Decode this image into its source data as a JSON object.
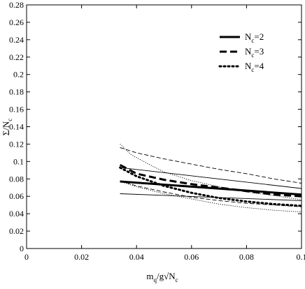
{
  "chart_data": {
    "type": "line",
    "title": "",
    "xlabel_parts": {
      "main": "m",
      "sub1": "q",
      "mid": "/g√N",
      "sub2": "c"
    },
    "ylabel_parts": {
      "main": "Σ/N",
      "sub": "c"
    },
    "xlim": [
      0,
      0.1
    ],
    "ylim": [
      0,
      0.28
    ],
    "xticks": [
      0,
      0.02,
      0.04,
      0.06,
      0.08,
      0.1
    ],
    "xtick_labels": [
      "0",
      "0.02",
      "0.04",
      "0.06",
      "0.08",
      "0.1"
    ],
    "yticks": [
      0,
      0.02,
      0.04,
      0.06,
      0.08,
      0.1,
      0.12,
      0.14,
      0.16,
      0.18,
      0.2,
      0.22,
      0.24,
      0.26,
      0.28
    ],
    "ytick_labels": [
      "0",
      "0.02",
      "0.04",
      "0.06",
      "0.08",
      "0.1",
      "0.12",
      "0.14",
      "0.16",
      "0.18",
      "0.2",
      "0.22",
      "0.24",
      "0.26",
      "0.28"
    ],
    "grid": false,
    "legend_position": "top-right",
    "legend": [
      {
        "main": "N",
        "sub": "c",
        "suffix": "=2",
        "style": "solid"
      },
      {
        "main": "N",
        "sub": "c",
        "suffix": "=3",
        "style": "dashed"
      },
      {
        "main": "N",
        "sub": "c",
        "suffix": "=4",
        "style": "dotted"
      }
    ],
    "series": [
      {
        "style": "solid",
        "weight": "thick",
        "x": [
          0.034,
          0.1
        ],
        "y": [
          0.077,
          0.062
        ]
      },
      {
        "style": "solid",
        "weight": "thin",
        "x": [
          0.034,
          0.1
        ],
        "y": [
          0.093,
          0.069
        ]
      },
      {
        "style": "solid",
        "weight": "thin",
        "x": [
          0.034,
          0.1
        ],
        "y": [
          0.063,
          0.055
        ]
      },
      {
        "style": "dashed",
        "weight": "thick",
        "x": [
          0.034,
          0.04,
          0.05,
          0.06,
          0.07,
          0.08,
          0.09,
          0.1
        ],
        "y": [
          0.096,
          0.086,
          0.079,
          0.074,
          0.07,
          0.066,
          0.062,
          0.06
        ]
      },
      {
        "style": "dashed",
        "weight": "thin",
        "x": [
          0.034,
          0.04,
          0.05,
          0.06,
          0.07,
          0.08,
          0.09,
          0.1
        ],
        "y": [
          0.116,
          0.11,
          0.103,
          0.097,
          0.091,
          0.086,
          0.08,
          0.075
        ]
      },
      {
        "style": "dashed",
        "weight": "thin",
        "x": [
          0.034,
          0.04,
          0.05,
          0.06,
          0.07,
          0.08,
          0.09,
          0.1
        ],
        "y": [
          0.078,
          0.072,
          0.065,
          0.059,
          0.055,
          0.052,
          0.05,
          0.048
        ]
      },
      {
        "style": "dotted",
        "weight": "thick",
        "x": [
          0.034,
          0.04,
          0.05,
          0.06,
          0.07,
          0.08,
          0.09,
          0.1
        ],
        "y": [
          0.093,
          0.083,
          0.072,
          0.064,
          0.058,
          0.054,
          0.051,
          0.049
        ]
      },
      {
        "style": "dotted",
        "weight": "thin",
        "x": [
          0.034,
          0.038,
          0.045,
          0.05,
          0.06,
          0.07,
          0.08,
          0.09,
          0.1
        ],
        "y": [
          0.12,
          0.108,
          0.096,
          0.088,
          0.078,
          0.071,
          0.065,
          0.061,
          0.056
        ]
      },
      {
        "style": "dotted",
        "weight": "thin",
        "x": [
          0.034,
          0.04,
          0.05,
          0.06,
          0.07,
          0.08,
          0.09,
          0.1
        ],
        "y": [
          0.077,
          0.071,
          0.063,
          0.057,
          0.051,
          0.047,
          0.044,
          0.042
        ]
      }
    ]
  }
}
